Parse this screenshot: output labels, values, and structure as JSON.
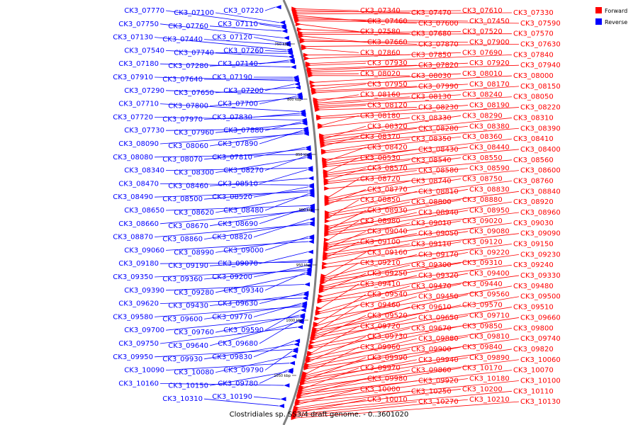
{
  "caption": "Clostridiales sp. SS3/4 draft genome. - 0..3601020",
  "legend": [
    {
      "label": "Forward",
      "color": "#ff0000"
    },
    {
      "label": "Reverse",
      "color": "#0000ff"
    }
  ],
  "colors": {
    "forward": "#ff0000",
    "reverse": "#0000ff",
    "backbone": "#808080"
  },
  "ticks": [
    "750 kbp",
    "800 kbp",
    "850 kbp",
    "900 kbp",
    "950 kbp",
    "1000 kbp",
    "1050 kbp"
  ],
  "genes": [
    {
      "name": "CK3_07220",
      "strand": "reverse"
    },
    {
      "name": "CK3_07340",
      "strand": "forward"
    },
    {
      "name": "CK3_07470",
      "strand": "forward"
    },
    {
      "name": "CK3_07610",
      "strand": "forward"
    },
    {
      "name": "CK3_07330",
      "strand": "forward"
    },
    {
      "name": "CK3_07460",
      "strand": "forward"
    },
    {
      "name": "CK3_07600",
      "strand": "forward"
    },
    {
      "name": "CK3_07450",
      "strand": "forward"
    },
    {
      "name": "CK3_07590",
      "strand": "forward"
    },
    {
      "name": "CK3_07100",
      "strand": "reverse"
    },
    {
      "name": "CK3_07580",
      "strand": "forward"
    },
    {
      "name": "CK3_07770",
      "strand": "reverse"
    },
    {
      "name": "CK3_07110",
      "strand": "reverse"
    },
    {
      "name": "CK3_07680",
      "strand": "forward"
    },
    {
      "name": "CK3_07760",
      "strand": "reverse"
    },
    {
      "name": "CK3_07520",
      "strand": "forward"
    },
    {
      "name": "CK3_07570",
      "strand": "forward"
    },
    {
      "name": "CK3_07660",
      "strand": "forward"
    },
    {
      "name": "CK3_07750",
      "strand": "reverse"
    },
    {
      "name": "CK3_07870",
      "strand": "forward"
    },
    {
      "name": "CK3_07900",
      "strand": "forward"
    },
    {
      "name": "CK3_07120",
      "strand": "reverse"
    },
    {
      "name": "CK3_07440",
      "strand": "reverse"
    },
    {
      "name": "CK3_07630",
      "strand": "forward"
    },
    {
      "name": "CK3_07860",
      "strand": "forward"
    },
    {
      "name": "CK3_07130",
      "strand": "reverse"
    },
    {
      "name": "CK3_07260",
      "strand": "reverse"
    },
    {
      "name": "CK3_07740",
      "strand": "reverse"
    },
    {
      "name": "CK3_07850",
      "strand": "forward"
    },
    {
      "name": "CK3_07540",
      "strand": "reverse"
    },
    {
      "name": "CK3_07690",
      "strand": "forward"
    },
    {
      "name": "CK3_07140",
      "strand": "reverse"
    },
    {
      "name": "CK3_07280",
      "strand": "reverse"
    },
    {
      "name": "CK3_07840",
      "strand": "forward"
    },
    {
      "name": "CK3_07930",
      "strand": "forward"
    },
    {
      "name": "CK3_07180",
      "strand": "reverse"
    },
    {
      "name": "CK3_07820",
      "strand": "forward"
    },
    {
      "name": "CK3_07920",
      "strand": "forward"
    },
    {
      "name": "CK3_07940",
      "strand": "forward"
    },
    {
      "name": "CK3_08020",
      "strand": "forward"
    },
    {
      "name": "CK3_08030",
      "strand": "forward"
    },
    {
      "name": "CK3_07190",
      "strand": "reverse"
    },
    {
      "name": "CK3_07640",
      "strand": "reverse"
    },
    {
      "name": "CK3_07910",
      "strand": "reverse"
    },
    {
      "name": "CK3_08010",
      "strand": "forward"
    },
    {
      "name": "CK3_07200",
      "strand": "reverse"
    },
    {
      "name": "CK3_08000",
      "strand": "forward"
    },
    {
      "name": "CK3_07650",
      "strand": "reverse"
    },
    {
      "name": "CK3_07950",
      "strand": "forward"
    },
    {
      "name": "CK3_07990",
      "strand": "forward"
    },
    {
      "name": "CK3_08170",
      "strand": "forward"
    },
    {
      "name": "CK3_07290",
      "strand": "reverse"
    },
    {
      "name": "CK3_07700",
      "strand": "reverse"
    },
    {
      "name": "CK3_07800",
      "strand": "reverse"
    },
    {
      "name": "CK3_08150",
      "strand": "forward"
    },
    {
      "name": "CK3_08160",
      "strand": "forward"
    },
    {
      "name": "CK3_08130",
      "strand": "forward"
    },
    {
      "name": "CK3_08240",
      "strand": "forward"
    },
    {
      "name": "CK3_08050",
      "strand": "forward"
    },
    {
      "name": "CK3_08120",
      "strand": "forward"
    },
    {
      "name": "CK3_08230",
      "strand": "forward"
    },
    {
      "name": "CK3_07710",
      "strand": "reverse"
    },
    {
      "name": "CK3_07830",
      "strand": "reverse"
    },
    {
      "name": "CK3_07970",
      "strand": "reverse"
    },
    {
      "name": "CK3_08190",
      "strand": "forward"
    },
    {
      "name": "CK3_08220",
      "strand": "forward"
    },
    {
      "name": "CK3_07720",
      "strand": "reverse"
    },
    {
      "name": "CK3_07880",
      "strand": "reverse"
    },
    {
      "name": "CK3_07960",
      "strand": "reverse"
    },
    {
      "name": "CK3_08180",
      "strand": "forward"
    },
    {
      "name": "CK3_08330",
      "strand": "forward"
    },
    {
      "name": "CK3_07730",
      "strand": "reverse"
    },
    {
      "name": "CK3_07890",
      "strand": "reverse"
    },
    {
      "name": "CK3_08060",
      "strand": "reverse"
    },
    {
      "name": "CK3_08090",
      "strand": "reverse"
    },
    {
      "name": "CK3_08290",
      "strand": "forward"
    },
    {
      "name": "CK3_08310",
      "strand": "forward"
    },
    {
      "name": "CK3_08320",
      "strand": "forward"
    },
    {
      "name": "CK3_08280",
      "strand": "forward"
    },
    {
      "name": "CK3_08380",
      "strand": "forward"
    },
    {
      "name": "CK3_08390",
      "strand": "forward"
    },
    {
      "name": "CK3_08370",
      "strand": "forward"
    },
    {
      "name": "CK3_07810",
      "strand": "reverse"
    },
    {
      "name": "CK3_08070",
      "strand": "reverse"
    },
    {
      "name": "CK3_08350",
      "strand": "forward"
    },
    {
      "name": "CK3_08360",
      "strand": "forward"
    },
    {
      "name": "CK3_08080",
      "strand": "reverse"
    },
    {
      "name": "CK3_08270",
      "strand": "reverse"
    },
    {
      "name": "CK3_08300",
      "strand": "reverse"
    },
    {
      "name": "CK3_08410",
      "strand": "forward"
    },
    {
      "name": "CK3_08420",
      "strand": "forward"
    },
    {
      "name": "CK3_08430",
      "strand": "forward"
    },
    {
      "name": "CK3_08440",
      "strand": "forward"
    },
    {
      "name": "CK3_08400",
      "strand": "forward"
    },
    {
      "name": "CK3_08340",
      "strand": "reverse"
    },
    {
      "name": "CK3_08510",
      "strand": "reverse"
    },
    {
      "name": "CK3_08530",
      "strand": "forward"
    },
    {
      "name": "CK3_08540",
      "strand": "forward"
    },
    {
      "name": "CK3_08550",
      "strand": "forward"
    },
    {
      "name": "CK3_08560",
      "strand": "forward"
    },
    {
      "name": "CK3_08460",
      "strand": "reverse"
    },
    {
      "name": "CK3_08570",
      "strand": "forward"
    },
    {
      "name": "CK3_08580",
      "strand": "forward"
    },
    {
      "name": "CK3_08590",
      "strand": "forward"
    },
    {
      "name": "CK3_08470",
      "strand": "reverse"
    },
    {
      "name": "CK3_08520",
      "strand": "reverse"
    },
    {
      "name": "CK3_08600",
      "strand": "forward"
    },
    {
      "name": "CK3_08500",
      "strand": "reverse"
    },
    {
      "name": "CK3_08490",
      "strand": "reverse"
    },
    {
      "name": "CK3_08480",
      "strand": "reverse"
    },
    {
      "name": "CK3_08620",
      "strand": "reverse"
    },
    {
      "name": "CK3_08720",
      "strand": "forward"
    },
    {
      "name": "CK3_08740",
      "strand": "forward"
    },
    {
      "name": "CK3_08750",
      "strand": "forward"
    },
    {
      "name": "CK3_08760",
      "strand": "forward"
    },
    {
      "name": "CK3_08770",
      "strand": "forward"
    },
    {
      "name": "CK3_08650",
      "strand": "reverse"
    },
    {
      "name": "CK3_08690",
      "strand": "reverse"
    },
    {
      "name": "CK3_08670",
      "strand": "reverse"
    },
    {
      "name": "CK3_08660",
      "strand": "reverse"
    },
    {
      "name": "CK3_08810",
      "strand": "forward"
    },
    {
      "name": "CK3_08830",
      "strand": "forward"
    },
    {
      "name": "CK3_08840",
      "strand": "forward"
    },
    {
      "name": "CK3_08850",
      "strand": "forward"
    },
    {
      "name": "CK3_08820",
      "strand": "reverse"
    },
    {
      "name": "CK3_08800",
      "strand": "forward"
    },
    {
      "name": "CK3_08860",
      "strand": "reverse"
    },
    {
      "name": "CK3_08870",
      "strand": "reverse"
    },
    {
      "name": "CK3_08880",
      "strand": "forward"
    },
    {
      "name": "CK3_08920",
      "strand": "forward"
    },
    {
      "name": "CK3_08930",
      "strand": "forward"
    },
    {
      "name": "CK3_08940",
      "strand": "forward"
    },
    {
      "name": "CK3_08950",
      "strand": "forward"
    },
    {
      "name": "CK3_08960",
      "strand": "forward"
    },
    {
      "name": "CK3_09000",
      "strand": "reverse"
    },
    {
      "name": "CK3_08990",
      "strand": "reverse"
    },
    {
      "name": "CK3_08980",
      "strand": "forward"
    },
    {
      "name": "CK3_09060",
      "strand": "reverse"
    },
    {
      "name": "CK3_09010",
      "strand": "forward"
    },
    {
      "name": "CK3_09020",
      "strand": "forward"
    },
    {
      "name": "CK3_09030",
      "strand": "forward"
    },
    {
      "name": "CK3_09040",
      "strand": "forward"
    },
    {
      "name": "CK3_09050",
      "strand": "forward"
    },
    {
      "name": "CK3_09070",
      "strand": "reverse"
    },
    {
      "name": "CK3_09080",
      "strand": "forward"
    },
    {
      "name": "CK3_09090",
      "strand": "forward"
    },
    {
      "name": "CK3_09100",
      "strand": "forward"
    },
    {
      "name": "CK3_09110",
      "strand": "forward"
    },
    {
      "name": "CK3_09190",
      "strand": "reverse"
    },
    {
      "name": "CK3_09180",
      "strand": "reverse"
    },
    {
      "name": "CK3_09120",
      "strand": "forward"
    },
    {
      "name": "CK3_09200",
      "strand": "reverse"
    },
    {
      "name": "CK3_09150",
      "strand": "forward"
    },
    {
      "name": "CK3_09360",
      "strand": "reverse"
    },
    {
      "name": "CK3_09350",
      "strand": "reverse"
    },
    {
      "name": "CK3_09340",
      "strand": "reverse"
    },
    {
      "name": "CK3_09280",
      "strand": "reverse"
    },
    {
      "name": "CK3_09160",
      "strand": "forward"
    },
    {
      "name": "CK3_09170",
      "strand": "forward"
    },
    {
      "name": "CK3_09220",
      "strand": "forward"
    },
    {
      "name": "CK3_09230",
      "strand": "forward"
    },
    {
      "name": "CK3_09210",
      "strand": "forward"
    },
    {
      "name": "CK3_09390",
      "strand": "reverse"
    },
    {
      "name": "CK3_09300",
      "strand": "forward"
    },
    {
      "name": "CK3_09310",
      "strand": "forward"
    },
    {
      "name": "CK3_09240",
      "strand": "forward"
    },
    {
      "name": "CK3_09250",
      "strand": "forward"
    },
    {
      "name": "CK3_09630",
      "strand": "reverse"
    },
    {
      "name": "CK3_09430",
      "strand": "reverse"
    },
    {
      "name": "CK3_09320",
      "strand": "forward"
    },
    {
      "name": "CK3_09620",
      "strand": "reverse"
    },
    {
      "name": "CK3_09400",
      "strand": "forward"
    },
    {
      "name": "CK3_09330",
      "strand": "forward"
    },
    {
      "name": "CK3_09770",
      "strand": "reverse"
    },
    {
      "name": "CK3_09600",
      "strand": "reverse"
    },
    {
      "name": "CK3_09580",
      "strand": "reverse"
    },
    {
      "name": "CK3_09410",
      "strand": "forward"
    },
    {
      "name": "CK3_09590",
      "strand": "reverse"
    },
    {
      "name": "CK3_09470",
      "strand": "forward"
    },
    {
      "name": "CK3_09440",
      "strand": "forward"
    },
    {
      "name": "CK3_09760",
      "strand": "reverse"
    },
    {
      "name": "CK3_09700",
      "strand": "reverse"
    },
    {
      "name": "CK3_09480",
      "strand": "forward"
    },
    {
      "name": "CK3_09680",
      "strand": "reverse"
    },
    {
      "name": "CK3_09640",
      "strand": "reverse"
    },
    {
      "name": "CK3_09540",
      "strand": "forward"
    },
    {
      "name": "CK3_09450",
      "strand": "forward"
    },
    {
      "name": "CK3_09750",
      "strand": "reverse"
    },
    {
      "name": "CK3_09560",
      "strand": "forward"
    },
    {
      "name": "CK3_09500",
      "strand": "forward"
    },
    {
      "name": "CK3_09460",
      "strand": "forward"
    },
    {
      "name": "CK3_09610",
      "strand": "forward"
    },
    {
      "name": "CK3_09570",
      "strand": "forward"
    },
    {
      "name": "CK3_09510",
      "strand": "forward"
    },
    {
      "name": "CK3_09520",
      "strand": "forward"
    },
    {
      "name": "CK3_09830",
      "strand": "reverse"
    },
    {
      "name": "CK3_09650",
      "strand": "forward"
    },
    {
      "name": "CK3_09930",
      "strand": "reverse"
    },
    {
      "name": "CK3_09710",
      "strand": "forward"
    },
    {
      "name": "CK3_09660",
      "strand": "forward"
    },
    {
      "name": "CK3_09950",
      "strand": "reverse"
    },
    {
      "name": "CK3_09790",
      "strand": "reverse"
    },
    {
      "name": "CK3_09720",
      "strand": "forward"
    },
    {
      "name": "CK3_09670",
      "strand": "forward"
    },
    {
      "name": "CK3_10080",
      "strand": "reverse"
    },
    {
      "name": "CK3_09850",
      "strand": "forward"
    },
    {
      "name": "CK3_09800",
      "strand": "forward"
    },
    {
      "name": "CK3_09730",
      "strand": "forward"
    },
    {
      "name": "CK3_10090",
      "strand": "reverse"
    },
    {
      "name": "CK3_09880",
      "strand": "forward"
    },
    {
      "name": "CK3_09810",
      "strand": "forward"
    },
    {
      "name": "CK3_09740",
      "strand": "forward"
    },
    {
      "name": "CK3_09780",
      "strand": "reverse"
    },
    {
      "name": "CK3_10150",
      "strand": "reverse"
    },
    {
      "name": "CK3_09960",
      "strand": "forward"
    },
    {
      "name": "CK3_09900",
      "strand": "forward"
    },
    {
      "name": "CK3_09840",
      "strand": "forward"
    },
    {
      "name": "CK3_09820",
      "strand": "forward"
    },
    {
      "name": "CK3_09990",
      "strand": "forward"
    },
    {
      "name": "CK3_09940",
      "strand": "forward"
    },
    {
      "name": "CK3_09890",
      "strand": "forward"
    },
    {
      "name": "CK3_10160",
      "strand": "reverse"
    },
    {
      "name": "CK3_10060",
      "strand": "forward"
    },
    {
      "name": "CK3_09970",
      "strand": "forward"
    },
    {
      "name": "CK3_09860",
      "strand": "forward"
    },
    {
      "name": "CK3_10170",
      "strand": "forward"
    },
    {
      "name": "CK3_10070",
      "strand": "forward"
    },
    {
      "name": "CK3_09980",
      "strand": "forward"
    },
    {
      "name": "CK3_09920",
      "strand": "forward"
    },
    {
      "name": "CK3_10190",
      "strand": "reverse"
    },
    {
      "name": "CK3_10180",
      "strand": "forward"
    },
    {
      "name": "CK3_10100",
      "strand": "forward"
    },
    {
      "name": "CK3_10000",
      "strand": "forward"
    },
    {
      "name": "CK3_10310",
      "strand": "reverse"
    },
    {
      "name": "CK3_10250",
      "strand": "forward"
    },
    {
      "name": "CK3_10200",
      "strand": "forward"
    },
    {
      "name": "CK3_10110",
      "strand": "forward"
    },
    {
      "name": "CK3_10010",
      "strand": "forward"
    },
    {
      "name": "CK3_10270",
      "strand": "forward"
    },
    {
      "name": "CK3_10210",
      "strand": "forward"
    },
    {
      "name": "CK3_10130",
      "strand": "forward"
    }
  ]
}
